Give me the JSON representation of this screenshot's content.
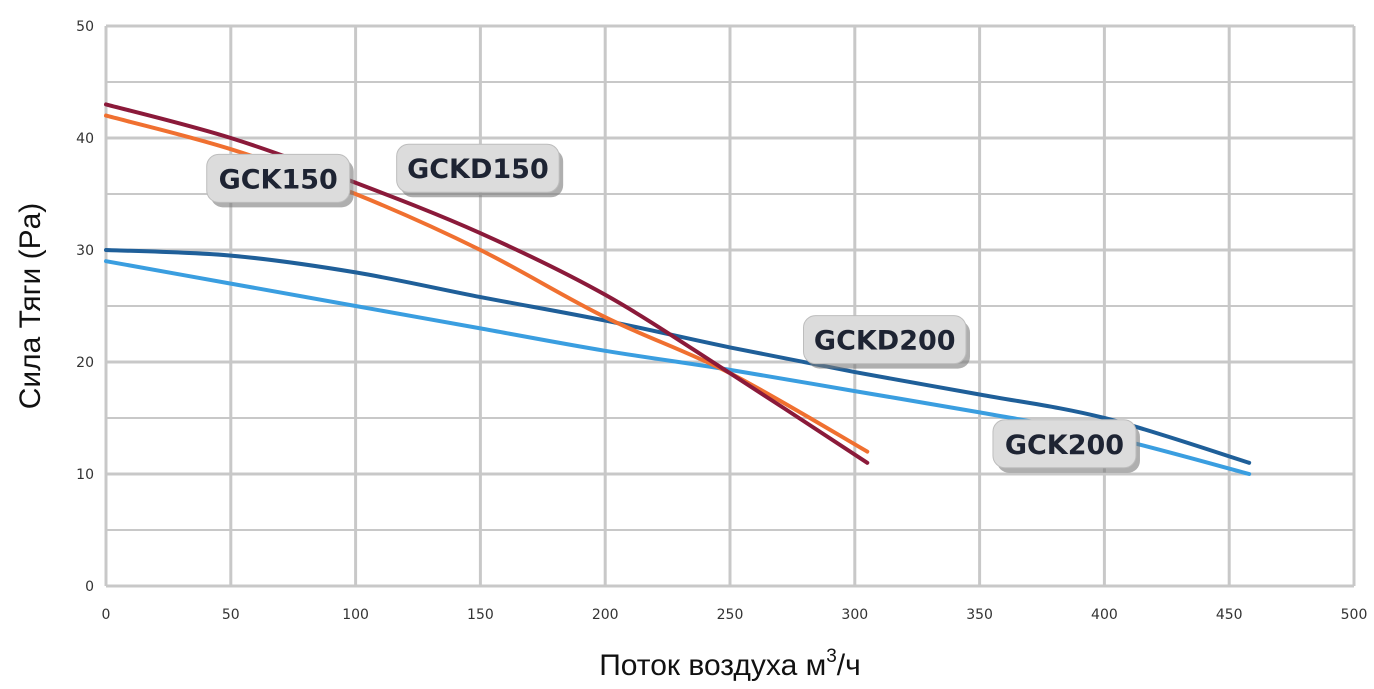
{
  "chart_data": {
    "type": "line",
    "title": "",
    "xlabel_main": "Поток воздуха м",
    "xlabel_sup": "3",
    "xlabel_tail": "/ч",
    "ylabel": "Сила Тяги (Pa)",
    "xlim": [
      0,
      500
    ],
    "ylim": [
      0,
      50
    ],
    "x_ticks": [
      0,
      50,
      100,
      150,
      200,
      250,
      300,
      350,
      400,
      450,
      500
    ],
    "y_ticks": [
      0,
      10,
      20,
      30,
      40,
      50
    ],
    "grid": true,
    "label_style": "callout-boxes",
    "series": [
      {
        "name": "GCKD150",
        "color": "#8b1a3a",
        "x": [
          0,
          50,
          100,
          150,
          200,
          250,
          305
        ],
        "y": [
          43,
          40,
          36,
          31.5,
          26,
          19,
          11
        ]
      },
      {
        "name": "GCK150",
        "color": "#f07030",
        "x": [
          0,
          50,
          100,
          150,
          200,
          250,
          305
        ],
        "y": [
          42,
          39,
          35,
          30,
          24,
          19,
          12
        ]
      },
      {
        "name": "GCKD200",
        "color": "#1f5f99",
        "x": [
          0,
          50,
          100,
          150,
          200,
          250,
          300,
          350,
          400,
          458
        ],
        "y": [
          30,
          29.5,
          28,
          25.8,
          23.7,
          21.3,
          19.1,
          17.1,
          15,
          11
        ]
      },
      {
        "name": "GCK200",
        "color": "#3a9ee0",
        "x": [
          0,
          50,
          100,
          150,
          200,
          250,
          300,
          350,
          400,
          458
        ],
        "y": [
          29,
          27,
          25,
          23,
          21,
          19.3,
          17.4,
          15.5,
          13.4,
          10
        ]
      }
    ]
  }
}
